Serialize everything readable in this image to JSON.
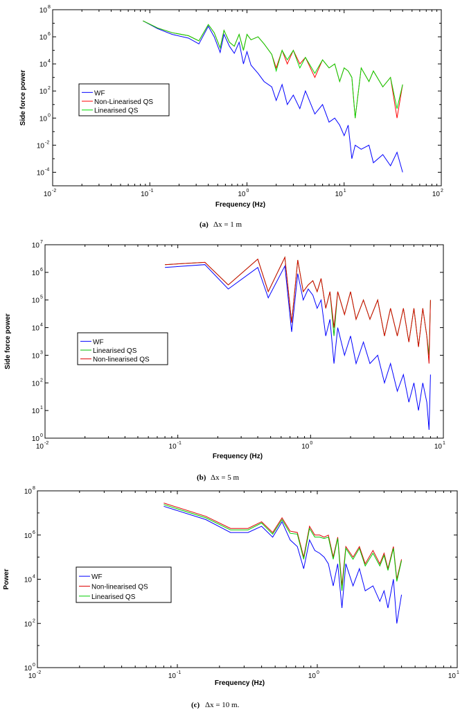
{
  "chart_data": [
    {
      "type": "line",
      "xlabel": "Frequency (Hz)",
      "ylabel": "Side force power",
      "caption_label": "(a)",
      "caption_text": "Δx = 1 m",
      "xscale": "log",
      "yscale": "log",
      "xlim": [
        0.01,
        100
      ],
      "ylim": [
        1e-05,
        100000000
      ],
      "xticks": [
        {
          "base": "10",
          "exp": "-2"
        },
        {
          "base": "10",
          "exp": "-1"
        },
        {
          "base": "10",
          "exp": "0"
        },
        {
          "base": "10",
          "exp": "1"
        },
        {
          "base": "10",
          "exp": "2"
        }
      ],
      "yticks": [
        {
          "base": "10",
          "exp": "-4"
        },
        {
          "base": "10",
          "exp": "-2"
        },
        {
          "base": "10",
          "exp": "0"
        },
        {
          "base": "10",
          "exp": "2"
        },
        {
          "base": "10",
          "exp": "4"
        },
        {
          "base": "10",
          "exp": "6"
        },
        {
          "base": "10",
          "exp": "8"
        }
      ],
      "legend_position": "middle-left",
      "series": [
        {
          "name": "WF",
          "color": "#0000ff",
          "x": [
            0.085,
            0.12,
            0.17,
            0.25,
            0.32,
            0.4,
            0.46,
            0.53,
            0.58,
            0.66,
            0.74,
            0.83,
            0.92,
            1.0,
            1.1,
            1.3,
            1.5,
            1.8,
            2.0,
            2.3,
            2.6,
            3.0,
            3.5,
            4.0,
            5.0,
            6.0,
            7.0,
            8.0,
            9.0,
            10.0,
            11.0,
            12.0,
            13.0,
            15.0,
            18.0,
            20.0,
            25.0,
            30.0,
            35.0,
            40.0
          ],
          "y": [
            15000000,
            4000000,
            1500000,
            800000,
            300000,
            6000000,
            1000000,
            70000,
            1500000,
            200000,
            60000,
            400000,
            10000,
            80000,
            8000,
            2000,
            500,
            200,
            20,
            300,
            10,
            50,
            5,
            100,
            2,
            10,
            0.5,
            1,
            0.3,
            0.05,
            0.3,
            0.001,
            0.01,
            0.005,
            0.01,
            0.0005,
            0.002,
            0.0003,
            0.003,
            0.0001
          ]
        },
        {
          "name": "Non-Linearised QS",
          "color": "#ff0000",
          "x": [
            0.085,
            0.12,
            0.17,
            0.25,
            0.32,
            0.4,
            0.46,
            0.53,
            0.58,
            0.66,
            0.74,
            0.83,
            0.92,
            1.0,
            1.1,
            1.3,
            1.5,
            1.8,
            2.0,
            2.3,
            2.6,
            3.0,
            3.5,
            4.0,
            5.0,
            6.0,
            7.0,
            8.0,
            9.0,
            10.0,
            11.0,
            12.0,
            13.0,
            15.0,
            18.0,
            20.0,
            25.0,
            30.0,
            35.0,
            40.0
          ],
          "y": [
            15000000,
            4500000,
            2000000,
            1200000,
            500000,
            8000000,
            2000000,
            150000,
            3000000,
            400000,
            200000,
            1500000,
            100000,
            1500000,
            600000,
            1000000,
            300000,
            50000,
            5000,
            100000,
            10000,
            100000,
            10000,
            30000,
            1000,
            20000,
            5000,
            10000,
            500,
            5000,
            3000,
            1000,
            1,
            5000,
            500,
            3000,
            200,
            1000,
            1,
            300
          ]
        },
        {
          "name": "Linearised QS",
          "color": "#00dd00",
          "x": [
            0.085,
            0.12,
            0.17,
            0.25,
            0.32,
            0.4,
            0.46,
            0.53,
            0.58,
            0.66,
            0.74,
            0.83,
            0.92,
            1.0,
            1.1,
            1.3,
            1.5,
            1.8,
            2.0,
            2.3,
            2.6,
            3.0,
            3.5,
            4.0,
            5.0,
            6.0,
            7.0,
            8.0,
            9.0,
            10.0,
            11.0,
            12.0,
            13.0,
            15.0,
            18.0,
            20.0,
            25.0,
            30.0,
            35.0,
            40.0
          ],
          "y": [
            15000000,
            4500000,
            2000000,
            1200000,
            500000,
            8000000,
            2000000,
            150000,
            3000000,
            400000,
            200000,
            1500000,
            100000,
            1500000,
            600000,
            1000000,
            300000,
            50000,
            3000,
            100000,
            20000,
            100000,
            5000,
            30000,
            2000,
            20000,
            5000,
            10000,
            500,
            5000,
            3000,
            1000,
            1,
            5000,
            500,
            3000,
            200,
            1000,
            5,
            300
          ]
        }
      ]
    },
    {
      "type": "line",
      "xlabel": "Frequency (Hz)",
      "ylabel": "Side force power",
      "caption_label": "(b)",
      "caption_text": "Δx = 5 m",
      "xscale": "log",
      "yscale": "log",
      "xlim": [
        0.01,
        10
      ],
      "ylim": [
        1,
        10000000
      ],
      "xticks": [
        {
          "base": "10",
          "exp": "-2"
        },
        {
          "base": "10",
          "exp": "-1"
        },
        {
          "base": "10",
          "exp": "0"
        },
        {
          "base": "10",
          "exp": "1"
        }
      ],
      "yticks": [
        {
          "base": "10",
          "exp": "0"
        },
        {
          "base": "10",
          "exp": "1"
        },
        {
          "base": "10",
          "exp": "2"
        },
        {
          "base": "10",
          "exp": "3"
        },
        {
          "base": "10",
          "exp": "4"
        },
        {
          "base": "10",
          "exp": "5"
        },
        {
          "base": "10",
          "exp": "6"
        },
        {
          "base": "10",
          "exp": "7"
        }
      ],
      "legend_position": "middle-left",
      "series": [
        {
          "name": "WF",
          "color": "#0000ff",
          "x": [
            0.08,
            0.16,
            0.24,
            0.4,
            0.48,
            0.64,
            0.72,
            0.8,
            0.88,
            0.96,
            1.04,
            1.12,
            1.2,
            1.3,
            1.4,
            1.5,
            1.6,
            1.8,
            2.0,
            2.2,
            2.5,
            2.8,
            3.2,
            3.6,
            4.0,
            4.5,
            5.0,
            5.5,
            6.0,
            6.5,
            7.0,
            7.5,
            7.8,
            8.0
          ],
          "y": [
            1500000,
            1900000,
            250000,
            1500000,
            120000,
            1700000,
            7000,
            900000,
            100000,
            250000,
            150000,
            50000,
            100000,
            5000,
            20000,
            500,
            10000,
            1000,
            5000,
            500,
            3000,
            500,
            1000,
            100,
            500,
            50,
            200,
            20,
            100,
            10,
            100,
            20,
            2,
            200
          ]
        },
        {
          "name": "Linearised QS",
          "color": "#00bb00",
          "x": [
            0.08,
            0.16,
            0.24,
            0.4,
            0.48,
            0.64,
            0.72,
            0.8,
            0.88,
            0.96,
            1.04,
            1.12,
            1.2,
            1.3,
            1.4,
            1.5,
            1.6,
            1.8,
            2.0,
            2.2,
            2.5,
            2.8,
            3.2,
            3.6,
            4.0,
            4.5,
            5.0,
            5.5,
            6.0,
            6.5,
            7.0,
            7.5,
            7.8,
            8.0
          ],
          "y": [
            1900000,
            2300000,
            350000,
            3000000,
            200000,
            3500000,
            15000,
            2800000,
            200000,
            350000,
            500000,
            200000,
            600000,
            50000,
            200000,
            5000,
            200000,
            30000,
            200000,
            20000,
            100000,
            20000,
            100000,
            5000,
            50000,
            5000,
            50000,
            3000,
            50000,
            2000,
            50000,
            5000,
            1000,
            100000
          ]
        },
        {
          "name": "Non-linearised QS",
          "color": "#dd0000",
          "x": [
            0.08,
            0.16,
            0.24,
            0.4,
            0.48,
            0.64,
            0.72,
            0.8,
            0.88,
            0.96,
            1.04,
            1.12,
            1.2,
            1.3,
            1.4,
            1.5,
            1.6,
            1.8,
            2.0,
            2.2,
            2.5,
            2.8,
            3.2,
            3.6,
            4.0,
            4.5,
            5.0,
            5.5,
            6.0,
            6.5,
            7.0,
            7.5,
            7.8,
            8.0
          ],
          "y": [
            1900000,
            2300000,
            350000,
            3000000,
            200000,
            3500000,
            15000,
            2800000,
            200000,
            350000,
            500000,
            200000,
            600000,
            50000,
            200000,
            10000,
            200000,
            30000,
            200000,
            20000,
            100000,
            20000,
            100000,
            5000,
            50000,
            5000,
            50000,
            3000,
            50000,
            2000,
            50000,
            5000,
            500,
            100000
          ]
        }
      ]
    },
    {
      "type": "line",
      "xlabel": "Frequency (Hz)",
      "ylabel": "Power",
      "caption_label": "(c)",
      "caption_text": "Δx  = 10 m.",
      "xscale": "log",
      "yscale": "log",
      "xlim": [
        0.01,
        10
      ],
      "ylim": [
        1,
        100000000
      ],
      "xticks": [
        {
          "base": "10",
          "exp": "-2"
        },
        {
          "base": "10",
          "exp": "-1"
        },
        {
          "base": "10",
          "exp": "0"
        },
        {
          "base": "10",
          "exp": "1"
        }
      ],
      "yticks": [
        {
          "base": "10",
          "exp": "0"
        },
        {
          "base": "10",
          "exp": "2"
        },
        {
          "base": "10",
          "exp": "4"
        },
        {
          "base": "10",
          "exp": "6"
        },
        {
          "base": "10",
          "exp": "8"
        }
      ],
      "legend_position": "middle-left",
      "series": [
        {
          "name": "WF",
          "color": "#0000ff",
          "x": [
            0.08,
            0.16,
            0.24,
            0.32,
            0.4,
            0.48,
            0.56,
            0.64,
            0.72,
            0.8,
            0.88,
            0.96,
            1.04,
            1.12,
            1.2,
            1.3,
            1.4,
            1.5,
            1.6,
            1.8,
            2.0,
            2.2,
            2.5,
            2.8,
            3.0,
            3.2,
            3.5,
            3.7,
            4.0
          ],
          "y": [
            20000000,
            5000000,
            1300000,
            1300000,
            2500000,
            800000,
            4000000,
            600000,
            300000,
            30000,
            600000,
            200000,
            150000,
            100000,
            50000,
            5000,
            50000,
            500,
            50000,
            5000,
            30000,
            3000,
            5000,
            1000,
            3000,
            500,
            10000,
            100,
            2000
          ]
        },
        {
          "name": "Non-linearised QS",
          "color": "#dd0000",
          "x": [
            0.08,
            0.16,
            0.24,
            0.32,
            0.4,
            0.48,
            0.56,
            0.64,
            0.72,
            0.8,
            0.88,
            0.96,
            1.04,
            1.12,
            1.2,
            1.3,
            1.4,
            1.5,
            1.6,
            1.8,
            2.0,
            2.2,
            2.5,
            2.8,
            3.0,
            3.2,
            3.5,
            3.7,
            4.0
          ],
          "y": [
            28000000,
            7000000,
            2000000,
            2000000,
            4000000,
            1300000,
            6000000,
            1500000,
            1300000,
            100000,
            2500000,
            1000000,
            1000000,
            800000,
            1000000,
            100000,
            800000,
            5000,
            300000,
            100000,
            300000,
            50000,
            200000,
            50000,
            150000,
            30000,
            300000,
            10000,
            80000
          ]
        },
        {
          "name": "Linearised QS",
          "color": "#00cc00",
          "x": [
            0.08,
            0.16,
            0.24,
            0.32,
            0.4,
            0.48,
            0.56,
            0.64,
            0.72,
            0.8,
            0.88,
            0.96,
            1.04,
            1.12,
            1.2,
            1.3,
            1.4,
            1.5,
            1.6,
            1.8,
            2.0,
            2.2,
            2.5,
            2.8,
            3.0,
            3.2,
            3.5,
            3.7,
            4.0
          ],
          "y": [
            24000000,
            6000000,
            1700000,
            1700000,
            3500000,
            1100000,
            5000000,
            1200000,
            1100000,
            80000,
            2000000,
            800000,
            800000,
            700000,
            800000,
            80000,
            700000,
            3000,
            250000,
            80000,
            250000,
            40000,
            150000,
            40000,
            120000,
            25000,
            250000,
            8000,
            70000
          ]
        }
      ]
    }
  ]
}
